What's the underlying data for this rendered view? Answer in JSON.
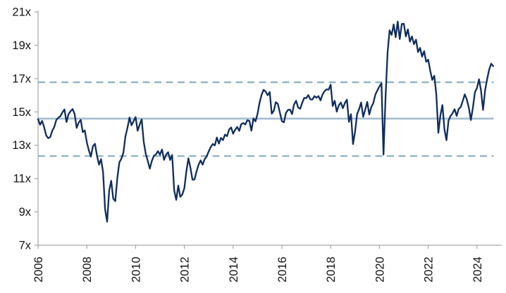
{
  "chart_data": {
    "type": "line",
    "title": "",
    "xlabel": "",
    "ylabel": "",
    "grid": false,
    "legend": null,
    "ylim": [
      7,
      21
    ],
    "y_tick_step": 2,
    "y_tick_labels": [
      "7x",
      "9x",
      "11x",
      "13x",
      "15x",
      "17x",
      "19x",
      "21x"
    ],
    "x_tick_labels": [
      "2006",
      "2008",
      "2010",
      "2012",
      "2014",
      "2016",
      "2018",
      "2020",
      "2022",
      "2024"
    ],
    "x_range": [
      2006,
      2024.75
    ],
    "series": [
      {
        "name": "valuation-multiple",
        "color": "#0f2d5d",
        "start_year": 2006,
        "points_per_year": 12,
        "values": [
          14.5,
          14.3,
          14.45,
          14.1,
          13.6,
          13.4,
          13.55,
          13.9,
          14.1,
          14.45,
          14.6,
          14.8,
          14.9,
          15.1,
          14.4,
          14.8,
          15.05,
          15.15,
          14.9,
          14.0,
          14.35,
          14.5,
          13.8,
          13.95,
          13.2,
          12.7,
          12.4,
          13.0,
          13.1,
          12.3,
          11.8,
          12.2,
          11.4,
          9.2,
          8.4,
          10.2,
          10.8,
          9.8,
          9.6,
          11.0,
          11.9,
          12.2,
          12.6,
          13.5,
          14.0,
          14.7,
          14.2,
          14.5,
          14.75,
          13.9,
          14.3,
          14.5,
          13.2,
          12.5,
          12.0,
          11.6,
          12.1,
          12.4,
          12.5,
          12.7,
          12.5,
          12.7,
          12.2,
          12.5,
          12.65,
          12.1,
          12.45,
          10.3,
          9.75,
          10.6,
          9.9,
          10.1,
          10.5,
          11.5,
          12.2,
          11.7,
          10.9,
          11.0,
          11.5,
          11.8,
          12.1,
          11.9,
          12.2,
          12.4,
          12.65,
          12.9,
          13.1,
          13.0,
          13.4,
          13.05,
          13.5,
          13.3,
          13.6,
          13.5,
          13.9,
          14.0,
          13.75,
          14.0,
          14.1,
          13.9,
          14.2,
          14.4,
          14.3,
          14.5,
          14.4,
          13.9,
          14.6,
          14.4,
          14.8,
          15.6,
          16.0,
          16.4,
          16.3,
          16.0,
          16.2,
          14.9,
          15.0,
          15.6,
          15.4,
          15.0,
          14.4,
          14.3,
          15.0,
          15.2,
          15.1,
          14.9,
          15.5,
          15.6,
          15.3,
          15.2,
          15.5,
          15.8,
          15.9,
          16.0,
          15.7,
          15.8,
          15.9,
          15.8,
          16.0,
          15.7,
          16.0,
          16.2,
          16.3,
          16.4,
          16.6,
          15.3,
          15.6,
          15.0,
          15.4,
          15.5,
          15.3,
          15.6,
          15.7,
          14.4,
          14.8,
          13.0,
          13.8,
          14.9,
          15.2,
          15.5,
          14.7,
          15.2,
          15.6,
          14.9,
          15.3,
          15.5,
          16.0,
          16.3,
          16.5,
          16.8,
          12.4,
          15.8,
          18.5,
          19.9,
          19.6,
          20.3,
          19.5,
          20.35,
          19.4,
          20.2,
          20.3,
          19.5,
          19.9,
          19.3,
          19.6,
          19.0,
          19.3,
          18.6,
          18.9,
          18.3,
          18.7,
          18.0,
          18.2,
          17.4,
          16.9,
          17.2,
          16.0,
          13.8,
          14.8,
          15.4,
          14.0,
          13.3,
          14.5,
          14.7,
          14.9,
          15.2,
          14.7,
          15.1,
          15.3,
          15.7,
          16.1,
          15.7,
          15.2,
          14.5,
          15.3,
          16.1,
          16.5,
          16.9,
          16.3,
          15.1,
          16.3,
          17.0,
          17.5,
          17.9,
          17.75
        ]
      }
    ],
    "reference_lines": [
      {
        "name": "average-line",
        "style": "solid",
        "value": 14.6,
        "color": "#a3bdcd"
      },
      {
        "name": "upper-stdev-line",
        "style": "dashed",
        "value": 16.78,
        "color": "#8fb2c6"
      },
      {
        "name": "lower-stdev-line",
        "style": "dashed",
        "value": 12.35,
        "color": "#8fb2c6"
      }
    ],
    "colors": {
      "series_line": "#0f2d5d",
      "axis": "#a6a6a6",
      "tick_text": "#141414",
      "background": "#ffffff"
    }
  }
}
